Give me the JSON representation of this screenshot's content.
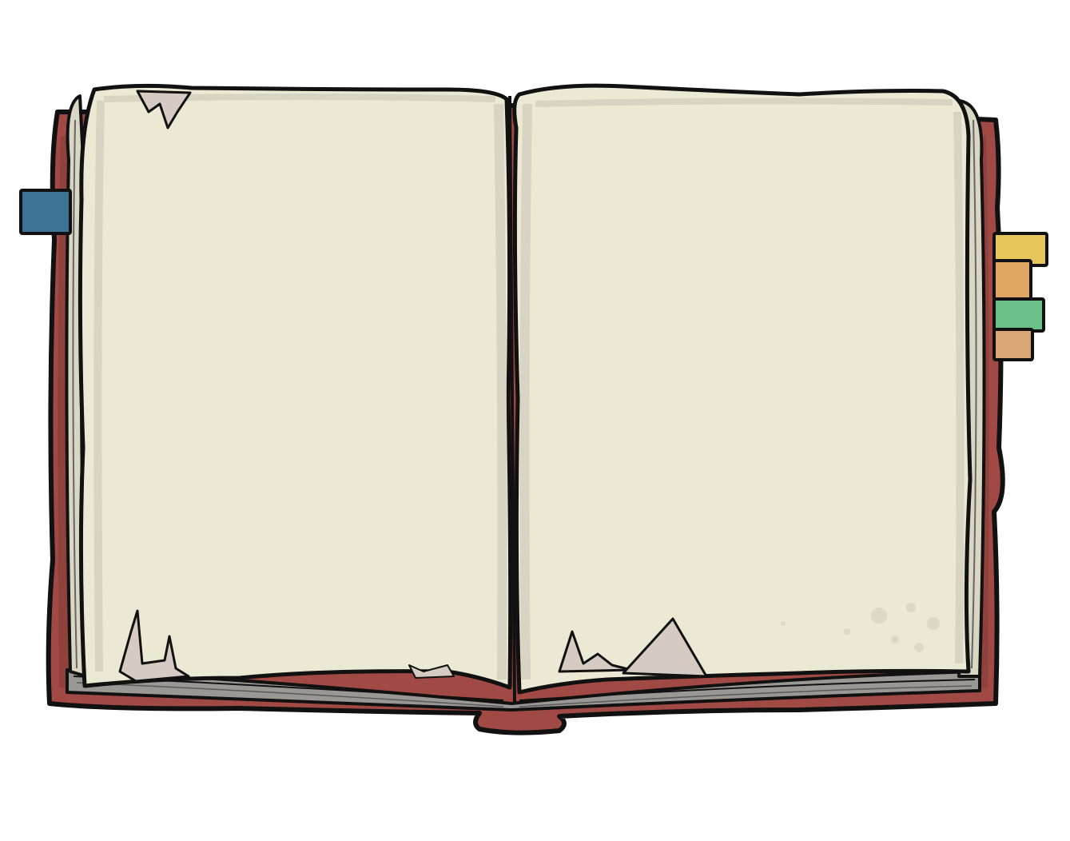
{
  "colors": {
    "background": "#ffffff",
    "cover": "#a14a45",
    "cover_dark": "#7e3733",
    "outline": "#111111",
    "page_paper": "#ebe8d4",
    "page_shade": "#d2cebb",
    "page_edge": "#c9c3b4",
    "torn_patch": "#d6cbc2",
    "bookmark_blue": "#3f7396",
    "bookmark_yellow": "#e8c75a",
    "bookmark_orange": "#e0a560",
    "bookmark_green": "#6bbf88",
    "bookmark_tan": "#d8a775"
  },
  "book": {
    "state": "open",
    "pages": [
      "left",
      "right"
    ],
    "page_text": [
      "",
      ""
    ]
  },
  "bookmarks": [
    {
      "side": "left",
      "color_key": "bookmark_blue"
    },
    {
      "side": "right",
      "color_key": "bookmark_yellow"
    },
    {
      "side": "right",
      "color_key": "bookmark_orange"
    },
    {
      "side": "right",
      "color_key": "bookmark_green"
    },
    {
      "side": "right",
      "color_key": "bookmark_tan"
    }
  ]
}
